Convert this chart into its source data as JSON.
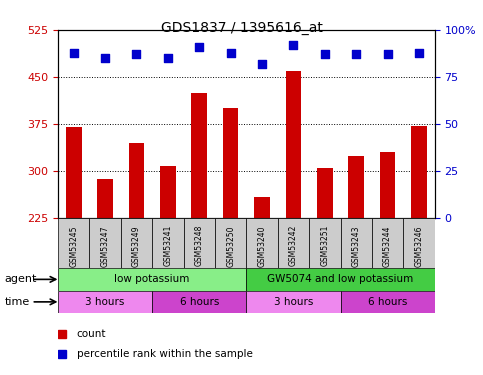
{
  "title": "GDS1837 / 1395616_at",
  "samples": [
    "GSM53245",
    "GSM53247",
    "GSM53249",
    "GSM53241",
    "GSM53248",
    "GSM53250",
    "GSM53240",
    "GSM53242",
    "GSM53251",
    "GSM53243",
    "GSM53244",
    "GSM53246"
  ],
  "bar_values": [
    370,
    287,
    345,
    308,
    425,
    400,
    258,
    460,
    305,
    323,
    330,
    372
  ],
  "percentile_values": [
    88,
    85,
    87,
    85,
    91,
    88,
    82,
    92,
    87,
    87,
    87,
    88
  ],
  "bar_color": "#cc0000",
  "dot_color": "#0000cc",
  "ylim_left": [
    225,
    525
  ],
  "ylim_right": [
    0,
    100
  ],
  "yticks_left": [
    225,
    300,
    375,
    450,
    525
  ],
  "yticks_right": [
    0,
    25,
    50,
    75,
    100
  ],
  "ytick_labels_right": [
    "0",
    "25",
    "50",
    "75",
    "100%"
  ],
  "gridlines": [
    300,
    375,
    450
  ],
  "agent_groups": [
    {
      "label": "low potassium",
      "start": 0,
      "end": 6,
      "color": "#88ee88"
    },
    {
      "label": "GW5074 and low potassium",
      "start": 6,
      "end": 12,
      "color": "#44cc44"
    }
  ],
  "time_groups": [
    {
      "label": "3 hours",
      "start": 0,
      "end": 3,
      "color": "#ee88ee"
    },
    {
      "label": "6 hours",
      "start": 3,
      "end": 6,
      "color": "#cc44cc"
    },
    {
      "label": "3 hours",
      "start": 6,
      "end": 9,
      "color": "#ee88ee"
    },
    {
      "label": "6 hours",
      "start": 9,
      "end": 12,
      "color": "#cc44cc"
    }
  ],
  "legend_items": [
    {
      "label": "count",
      "color": "#cc0000",
      "marker": "s"
    },
    {
      "label": "percentile rank within the sample",
      "color": "#0000cc",
      "marker": "s"
    }
  ],
  "axis_label_color_left": "#cc0000",
  "axis_label_color_right": "#0000cc",
  "sample_box_color": "#cccccc",
  "bar_width": 0.5
}
